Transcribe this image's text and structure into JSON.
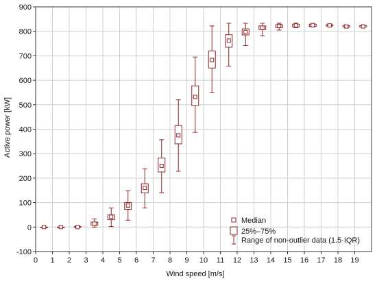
{
  "colors": {
    "box": "#8b2323",
    "grid": "#d0d0d0",
    "frame": "#333333",
    "background": "#ffffff"
  },
  "chart_data": {
    "type": "box",
    "title": "",
    "xlabel": "Wind speed [m/s]",
    "ylabel": "Active power [kW]",
    "xlim": [
      0,
      20
    ],
    "ylim": [
      -100,
      900
    ],
    "x_ticks": [
      0,
      1,
      2,
      3,
      4,
      5,
      6,
      7,
      8,
      9,
      10,
      11,
      12,
      13,
      14,
      15,
      16,
      17,
      18,
      19
    ],
    "y_ticks": [
      -100,
      0,
      100,
      200,
      300,
      400,
      500,
      600,
      700,
      800,
      900
    ],
    "grid": true,
    "legend": {
      "placement": "bottom-right",
      "entries": [
        "Median",
        "25%–75%",
        "Range of non-outlier data (1.5·IQR)"
      ]
    },
    "boxes": [
      {
        "x": 0.5,
        "median": 0,
        "q1": 0,
        "q3": 0,
        "min": 0,
        "max": 0
      },
      {
        "x": 1.5,
        "median": 0,
        "q1": 0,
        "q3": 0,
        "min": 0,
        "max": 0
      },
      {
        "x": 2.5,
        "median": 0,
        "q1": 0,
        "q3": 2,
        "min": 0,
        "max": 5
      },
      {
        "x": 3.5,
        "median": 14,
        "q1": 8,
        "q3": 20,
        "min": 0,
        "max": 33
      },
      {
        "x": 4.5,
        "median": 42,
        "q1": 30,
        "q3": 50,
        "min": 2,
        "max": 78
      },
      {
        "x": 5.5,
        "median": 88,
        "q1": 72,
        "q3": 100,
        "min": 28,
        "max": 148
      },
      {
        "x": 6.5,
        "median": 160,
        "q1": 140,
        "q3": 177,
        "min": 78,
        "max": 238
      },
      {
        "x": 7.5,
        "median": 250,
        "q1": 225,
        "q3": 282,
        "min": 140,
        "max": 357
      },
      {
        "x": 8.5,
        "median": 375,
        "q1": 340,
        "q3": 415,
        "min": 228,
        "max": 520
      },
      {
        "x": 9.5,
        "median": 532,
        "q1": 497,
        "q3": 577,
        "min": 387,
        "max": 695
      },
      {
        "x": 10.5,
        "median": 683,
        "q1": 650,
        "q3": 720,
        "min": 550,
        "max": 822
      },
      {
        "x": 11.5,
        "median": 762,
        "q1": 735,
        "q3": 786,
        "min": 658,
        "max": 833
      },
      {
        "x": 12.5,
        "median": 797,
        "q1": 785,
        "q3": 810,
        "min": 742,
        "max": 833
      },
      {
        "x": 13.5,
        "median": 815,
        "q1": 807,
        "q3": 822,
        "min": 782,
        "max": 833
      },
      {
        "x": 14.5,
        "median": 822,
        "q1": 815,
        "q3": 827,
        "min": 805,
        "max": 833
      },
      {
        "x": 15.5,
        "median": 824,
        "q1": 818,
        "q3": 829,
        "min": 815,
        "max": 833
      },
      {
        "x": 16.5,
        "median": 825,
        "q1": 820,
        "q3": 829,
        "min": 818,
        "max": 832
      },
      {
        "x": 17.5,
        "median": 824,
        "q1": 822,
        "q3": 827,
        "min": 820,
        "max": 830
      },
      {
        "x": 18.5,
        "median": 820,
        "q1": 818,
        "q3": 823,
        "min": 815,
        "max": 825
      },
      {
        "x": 19.5,
        "median": 820,
        "q1": 818,
        "q3": 823,
        "min": 818,
        "max": 823
      }
    ]
  }
}
